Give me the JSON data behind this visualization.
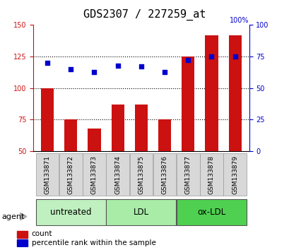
{
  "title": "GDS2307 / 227259_at",
  "samples": [
    "GSM133871",
    "GSM133872",
    "GSM133873",
    "GSM133874",
    "GSM133875",
    "GSM133876",
    "GSM133877",
    "GSM133878",
    "GSM133879"
  ],
  "counts": [
    100,
    75,
    68,
    87,
    87,
    75,
    125,
    142,
    142
  ],
  "percentiles": [
    70,
    65,
    63,
    68,
    67,
    63,
    72,
    75,
    75
  ],
  "groups": [
    {
      "label": "untreated",
      "indices": [
        0,
        1,
        2
      ],
      "color": "#c0f0c0"
    },
    {
      "label": "LDL",
      "indices": [
        3,
        4,
        5
      ],
      "color": "#a8eca8"
    },
    {
      "label": "ox-LDL",
      "indices": [
        6,
        7,
        8
      ],
      "color": "#50d050"
    }
  ],
  "ylim_left": [
    50,
    150
  ],
  "ylim_right": [
    0,
    100
  ],
  "yticks_left": [
    50,
    75,
    100,
    125,
    150
  ],
  "yticks_right": [
    0,
    25,
    50,
    75,
    100
  ],
  "bar_color": "#cc1111",
  "dot_color": "#0000cc",
  "bar_width": 0.55,
  "background_color": "#ffffff",
  "plot_bg_color": "#ffffff",
  "title_fontsize": 11,
  "tick_fontsize": 7,
  "legend_fontsize": 7.5,
  "group_label_fontsize": 8.5,
  "agent_fontsize": 8,
  "sample_fontsize": 6.5
}
